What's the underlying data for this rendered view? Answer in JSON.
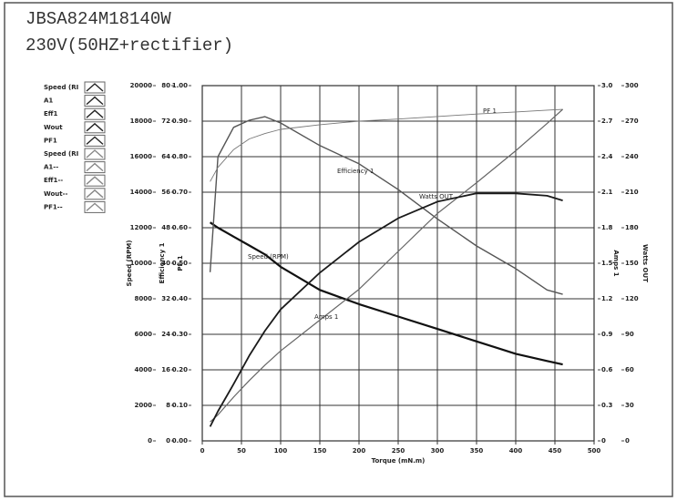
{
  "chart_data": {
    "type": "line",
    "title": "JBSA824M18140W",
    "subtitle": "230V(50HZ+rectifier)",
    "x_label": "Torque (mN.m)",
    "xlim": [
      0,
      500
    ],
    "xticks": [
      0,
      50,
      100,
      150,
      200,
      250,
      300,
      350,
      400,
      450,
      500
    ],
    "grid": true,
    "y_axes": [
      {
        "label": "Speed (RPM)",
        "side": "left",
        "lim": [
          0,
          20000
        ],
        "ticks": [
          0,
          2000,
          4000,
          6000,
          8000,
          10000,
          12000,
          14000,
          16000,
          18000,
          20000
        ]
      },
      {
        "label": "Efficiency 1",
        "side": "left",
        "lim": [
          0,
          80
        ],
        "ticks": [
          0,
          8,
          16,
          24,
          32,
          40,
          48,
          56,
          64,
          72,
          80
        ]
      },
      {
        "label": "PF 1",
        "side": "left",
        "lim": [
          0,
          1
        ],
        "ticks": [
          {
            "value": 0,
            "label": "0.00"
          },
          {
            "value": 0.1,
            "label": "0.10"
          },
          {
            "value": 0.2,
            "label": "0.20"
          },
          {
            "value": 0.3,
            "label": "0.30"
          },
          {
            "value": 0.4,
            "label": "0.40"
          },
          {
            "value": 0.5,
            "label": "0.50"
          },
          {
            "value": 0.6,
            "label": "0.60"
          },
          {
            "value": 0.7,
            "label": "0.70"
          },
          {
            "value": 0.8,
            "label": "0.80"
          },
          {
            "value": 0.9,
            "label": "0.90"
          },
          {
            "value": 1,
            "label": "1.00"
          }
        ]
      },
      {
        "label": "Amps 1",
        "side": "right",
        "lim": [
          0,
          3
        ],
        "ticks": [
          0,
          0.3,
          0.6,
          0.9,
          1.2,
          1.5,
          1.8,
          2.1,
          2.4,
          2.7,
          {
            "value": 3,
            "label": "3.0"
          }
        ]
      },
      {
        "label": "Watts OUT",
        "side": "right",
        "lim": [
          0,
          300
        ],
        "ticks": [
          0,
          30,
          60,
          90,
          120,
          150,
          180,
          210,
          240,
          270,
          300
        ]
      }
    ],
    "x": [
      10,
      20,
      40,
      60,
      80,
      100,
      150,
      200,
      250,
      300,
      350,
      400,
      440,
      460
    ],
    "series": [
      {
        "name": "Speed (RPM)",
        "axis": 0,
        "color": "#111111",
        "values": [
          12300,
          12000,
          11500,
          11000,
          10500,
          9800,
          8500,
          7700,
          7000,
          6300,
          5600,
          4900,
          4500,
          4300
        ]
      },
      {
        "name": "Efficiency 1",
        "axis": 1,
        "color": "#555555",
        "values": [
          38,
          64,
          70.6,
          72.2,
          73,
          71.6,
          66.5,
          62.4,
          56.6,
          50,
          43.9,
          38.8,
          34,
          33
        ]
      },
      {
        "name": "PF 1",
        "axis": 2,
        "color": "#777777",
        "values": [
          0.73,
          0.77,
          0.82,
          0.85,
          0.865,
          0.877,
          0.89,
          0.9,
          0.906,
          0.913,
          0.92,
          0.926,
          0.931,
          0.933
        ]
      },
      {
        "name": "Amps 1",
        "axis": 3,
        "color": "#666666",
        "values": [
          0.16,
          0.22,
          0.37,
          0.51,
          0.64,
          0.76,
          1.02,
          1.28,
          1.6,
          1.92,
          2.18,
          2.45,
          2.68,
          2.8
        ]
      },
      {
        "name": "Watts OUT",
        "axis": 4,
        "color": "#1a1a1a",
        "values": [
          12,
          25,
          48,
          72,
          93,
          111,
          142,
          168,
          188,
          202,
          209,
          209,
          207,
          203
        ]
      }
    ],
    "legend": [
      "Speed (RI",
      "A1",
      "Eff1",
      "Wout",
      "PF1",
      "Speed (RI",
      "A1--",
      "Eff1--",
      "Wout--",
      "PF1--"
    ]
  }
}
